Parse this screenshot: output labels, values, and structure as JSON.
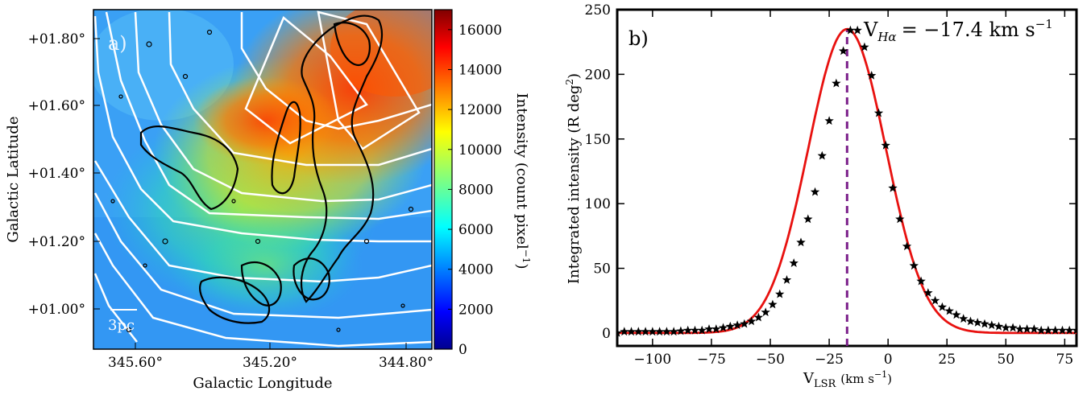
{
  "chart_data": [
    {
      "type": "heatmap",
      "panel_label": "a)",
      "xlabel": "Galactic Longitude",
      "ylabel": "Galactic Latitude",
      "x_ticks": [
        "345.60°",
        "345.20°",
        "344.80°"
      ],
      "y_ticks": [
        "+01.00°",
        "+01.20°",
        "+01.40°",
        "+01.60°",
        "+01.80°"
      ],
      "xlim": [
        345.85,
        344.69
      ],
      "ylim": [
        0.89,
        1.89
      ],
      "colorbar": {
        "label": "Intensity (count pixel",
        "label_sup": "−1",
        "label_tail": ")",
        "ticks": [
          0,
          2000,
          4000,
          6000,
          8000,
          10000,
          12000,
          14000,
          16000
        ],
        "range": [
          0,
          17000
        ],
        "colormap": "jet"
      },
      "scale_bar_label": "3pc",
      "colors": {
        "contour_black": "#000000",
        "contour_white": "#ffffff"
      }
    },
    {
      "type": "line",
      "panel_label": "b)",
      "xlabel": "V",
      "xlabel_sub": "LSR",
      "xlabel_unit": "(km s",
      "xlabel_unit_sup": "−1",
      "xlabel_unit_tail": ")",
      "ylabel": "Integrated intensity (R deg",
      "ylabel_sup": "2",
      "ylabel_tail": ")",
      "xlim": [
        -115,
        80
      ],
      "ylim": [
        -10,
        250
      ],
      "x_ticks": [
        -100,
        -75,
        -50,
        -25,
        0,
        25,
        50,
        75
      ],
      "y_ticks": [
        0,
        50,
        100,
        150,
        200,
        250
      ],
      "annotation": {
        "prefix": "V",
        "sub": "Hα",
        "value": "= −17.4 km s",
        "sup": "−1"
      },
      "peak_velocity": -17.4,
      "series": [
        {
          "style": "stars",
          "x": [
            -115,
            -112,
            -109,
            -106,
            -103,
            -100,
            -97,
            -94,
            -91,
            -88,
            -85,
            -82,
            -79,
            -76,
            -73,
            -70,
            -67,
            -64,
            -61,
            -58,
            -55,
            -52,
            -49,
            -46,
            -43,
            -40,
            -37,
            -34,
            -31,
            -28,
            -25,
            -22,
            -19,
            -16,
            -13,
            -10,
            -7,
            -4,
            -1,
            2,
            5,
            8,
            11,
            14,
            17,
            20,
            23,
            26,
            29,
            32,
            35,
            38,
            41,
            44,
            47,
            50,
            53,
            56,
            59,
            62,
            65,
            68,
            71,
            74,
            77,
            80
          ],
          "y": [
            0,
            1,
            1,
            1,
            1,
            1,
            1,
            1,
            1,
            1.5,
            2,
            2,
            2,
            3,
            3,
            4,
            5,
            6,
            7,
            9,
            12,
            16,
            22,
            30,
            41,
            54,
            70,
            88,
            109,
            137,
            164,
            193,
            218,
            234,
            234,
            221,
            199,
            170,
            145,
            112,
            88,
            67,
            52,
            40,
            31,
            25,
            20,
            17,
            14,
            11,
            9,
            8,
            7,
            6,
            5,
            4,
            4,
            3,
            3,
            3,
            2,
            2,
            2,
            2,
            2,
            2
          ]
        },
        {
          "style": "fit-line",
          "model": "gaussian",
          "center": -17.4,
          "amplitude": 235,
          "sigma": 16.5,
          "offset": 0
        }
      ],
      "colors": {
        "fit": "#e8110f",
        "marker": "#000000",
        "vline": "#7b1f8a"
      }
    }
  ]
}
